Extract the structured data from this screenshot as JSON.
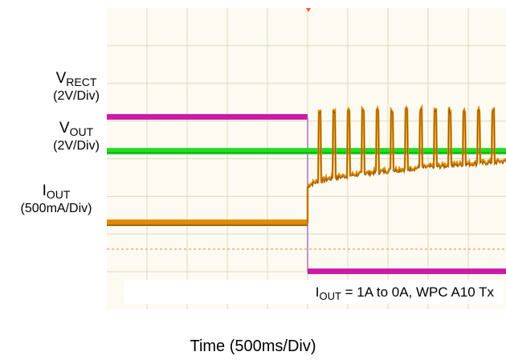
{
  "chart_data": {
    "type": "line",
    "xlabel": "Time (500ms/Div)",
    "x_divisions": 10,
    "y_divisions": 8,
    "trigger_division": 5,
    "series": [
      {
        "name": "V",
        "name_sub": "RECT",
        "scale": "(2V/Div)",
        "color": "#e08a00",
        "before": 2.3,
        "after_min": 3.2,
        "after_max": 5.3
      },
      {
        "name": "V",
        "name_sub": "OUT",
        "scale": "(2V/Div)",
        "color": "#22dd22",
        "before": 4.2,
        "after": 4.2
      },
      {
        "name": "I",
        "name_sub": "OUT",
        "scale": "(500mA/Div)",
        "color": "#cc1aa8",
        "before": 5.1,
        "after": 1.0
      }
    ],
    "annotation": {
      "prefix": "I",
      "sub": "OUT",
      "text": " = 1A to 0A, WPC A10 Tx"
    }
  }
}
